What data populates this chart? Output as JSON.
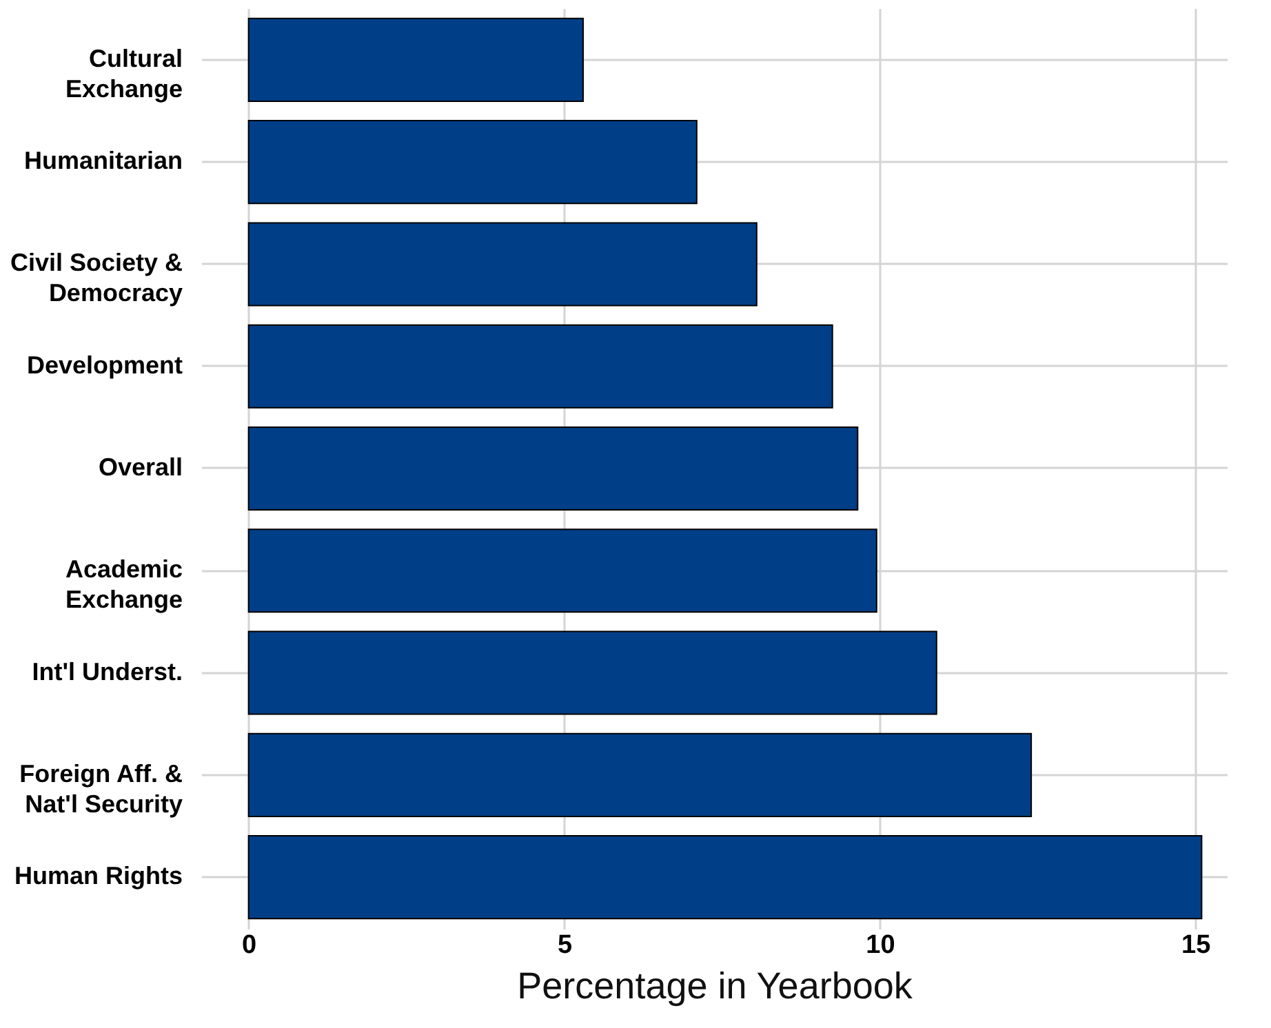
{
  "chart_data": {
    "type": "bar",
    "orientation": "horizontal",
    "xlabel": "Percentage in Yearbook",
    "categories": [
      "Cultural\nExchange",
      "Humanitarian",
      "Civil Society &\nDemocracy",
      "Development",
      "Overall",
      "Academic\nExchange",
      "Int'l Underst.",
      "Foreign Aff. &\nNat'l Security",
      "Human Rights"
    ],
    "values": [
      5.3,
      7.1,
      8.05,
      9.25,
      9.65,
      9.95,
      10.9,
      12.4,
      15.1
    ],
    "color": "#003f87",
    "xlim": [
      -0.75,
      15.5
    ],
    "xticks": [
      0,
      5,
      10,
      15
    ],
    "grid": true
  }
}
